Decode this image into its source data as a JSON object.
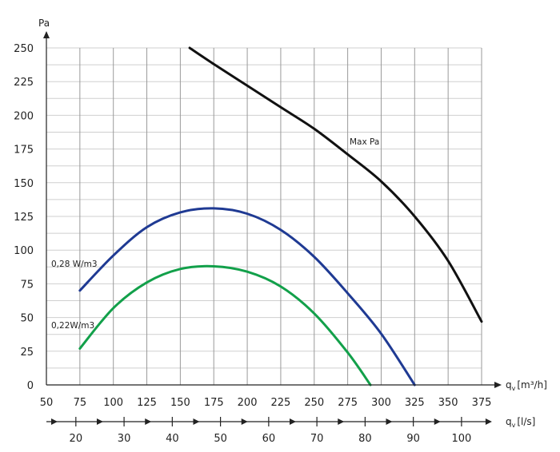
{
  "chart_data": {
    "type": "line",
    "title": "",
    "ylabel": "Pa",
    "xlabel_primary": "q",
    "xlabel_primary_sub": "v",
    "xlabel_primary_unit": "[m³/h]",
    "xlabel_secondary": "q",
    "xlabel_secondary_sub": "v",
    "xlabel_secondary_unit": "[l/s]",
    "xlim": [
      50,
      375
    ],
    "ylim": [
      0,
      250
    ],
    "x_ticks": [
      50,
      75,
      100,
      125,
      150,
      175,
      200,
      225,
      250,
      275,
      300,
      325,
      350,
      375
    ],
    "y_ticks": [
      0,
      25,
      50,
      75,
      100,
      125,
      150,
      175,
      200,
      225,
      250
    ],
    "secondary_ticks": [
      20,
      30,
      40,
      50,
      60,
      70,
      80,
      90,
      100
    ],
    "secondary_factor": 3.6,
    "grid": true,
    "series": [
      {
        "name": "Max Pa",
        "color": "#111111",
        "x": [
          157,
          175,
          200,
          225,
          250,
          275,
          300,
          325,
          350,
          375
        ],
        "y": [
          250,
          238,
          222,
          206,
          190,
          171,
          151,
          125,
          92,
          47
        ]
      },
      {
        "name": "0,28 W/m3",
        "color": "#1f3a93",
        "x": [
          75,
          100,
          125,
          150,
          175,
          200,
          225,
          250,
          275,
          300,
          325
        ],
        "y": [
          70,
          96,
          117,
          128,
          131,
          127,
          115,
          95,
          68,
          38,
          0
        ]
      },
      {
        "name": "0,22W/m3",
        "color": "#12a04a",
        "x": [
          75,
          100,
          125,
          150,
          175,
          200,
          225,
          250,
          275,
          292
        ],
        "y": [
          27,
          57,
          76,
          86,
          88,
          84,
          73,
          53,
          24,
          0
        ]
      }
    ]
  }
}
